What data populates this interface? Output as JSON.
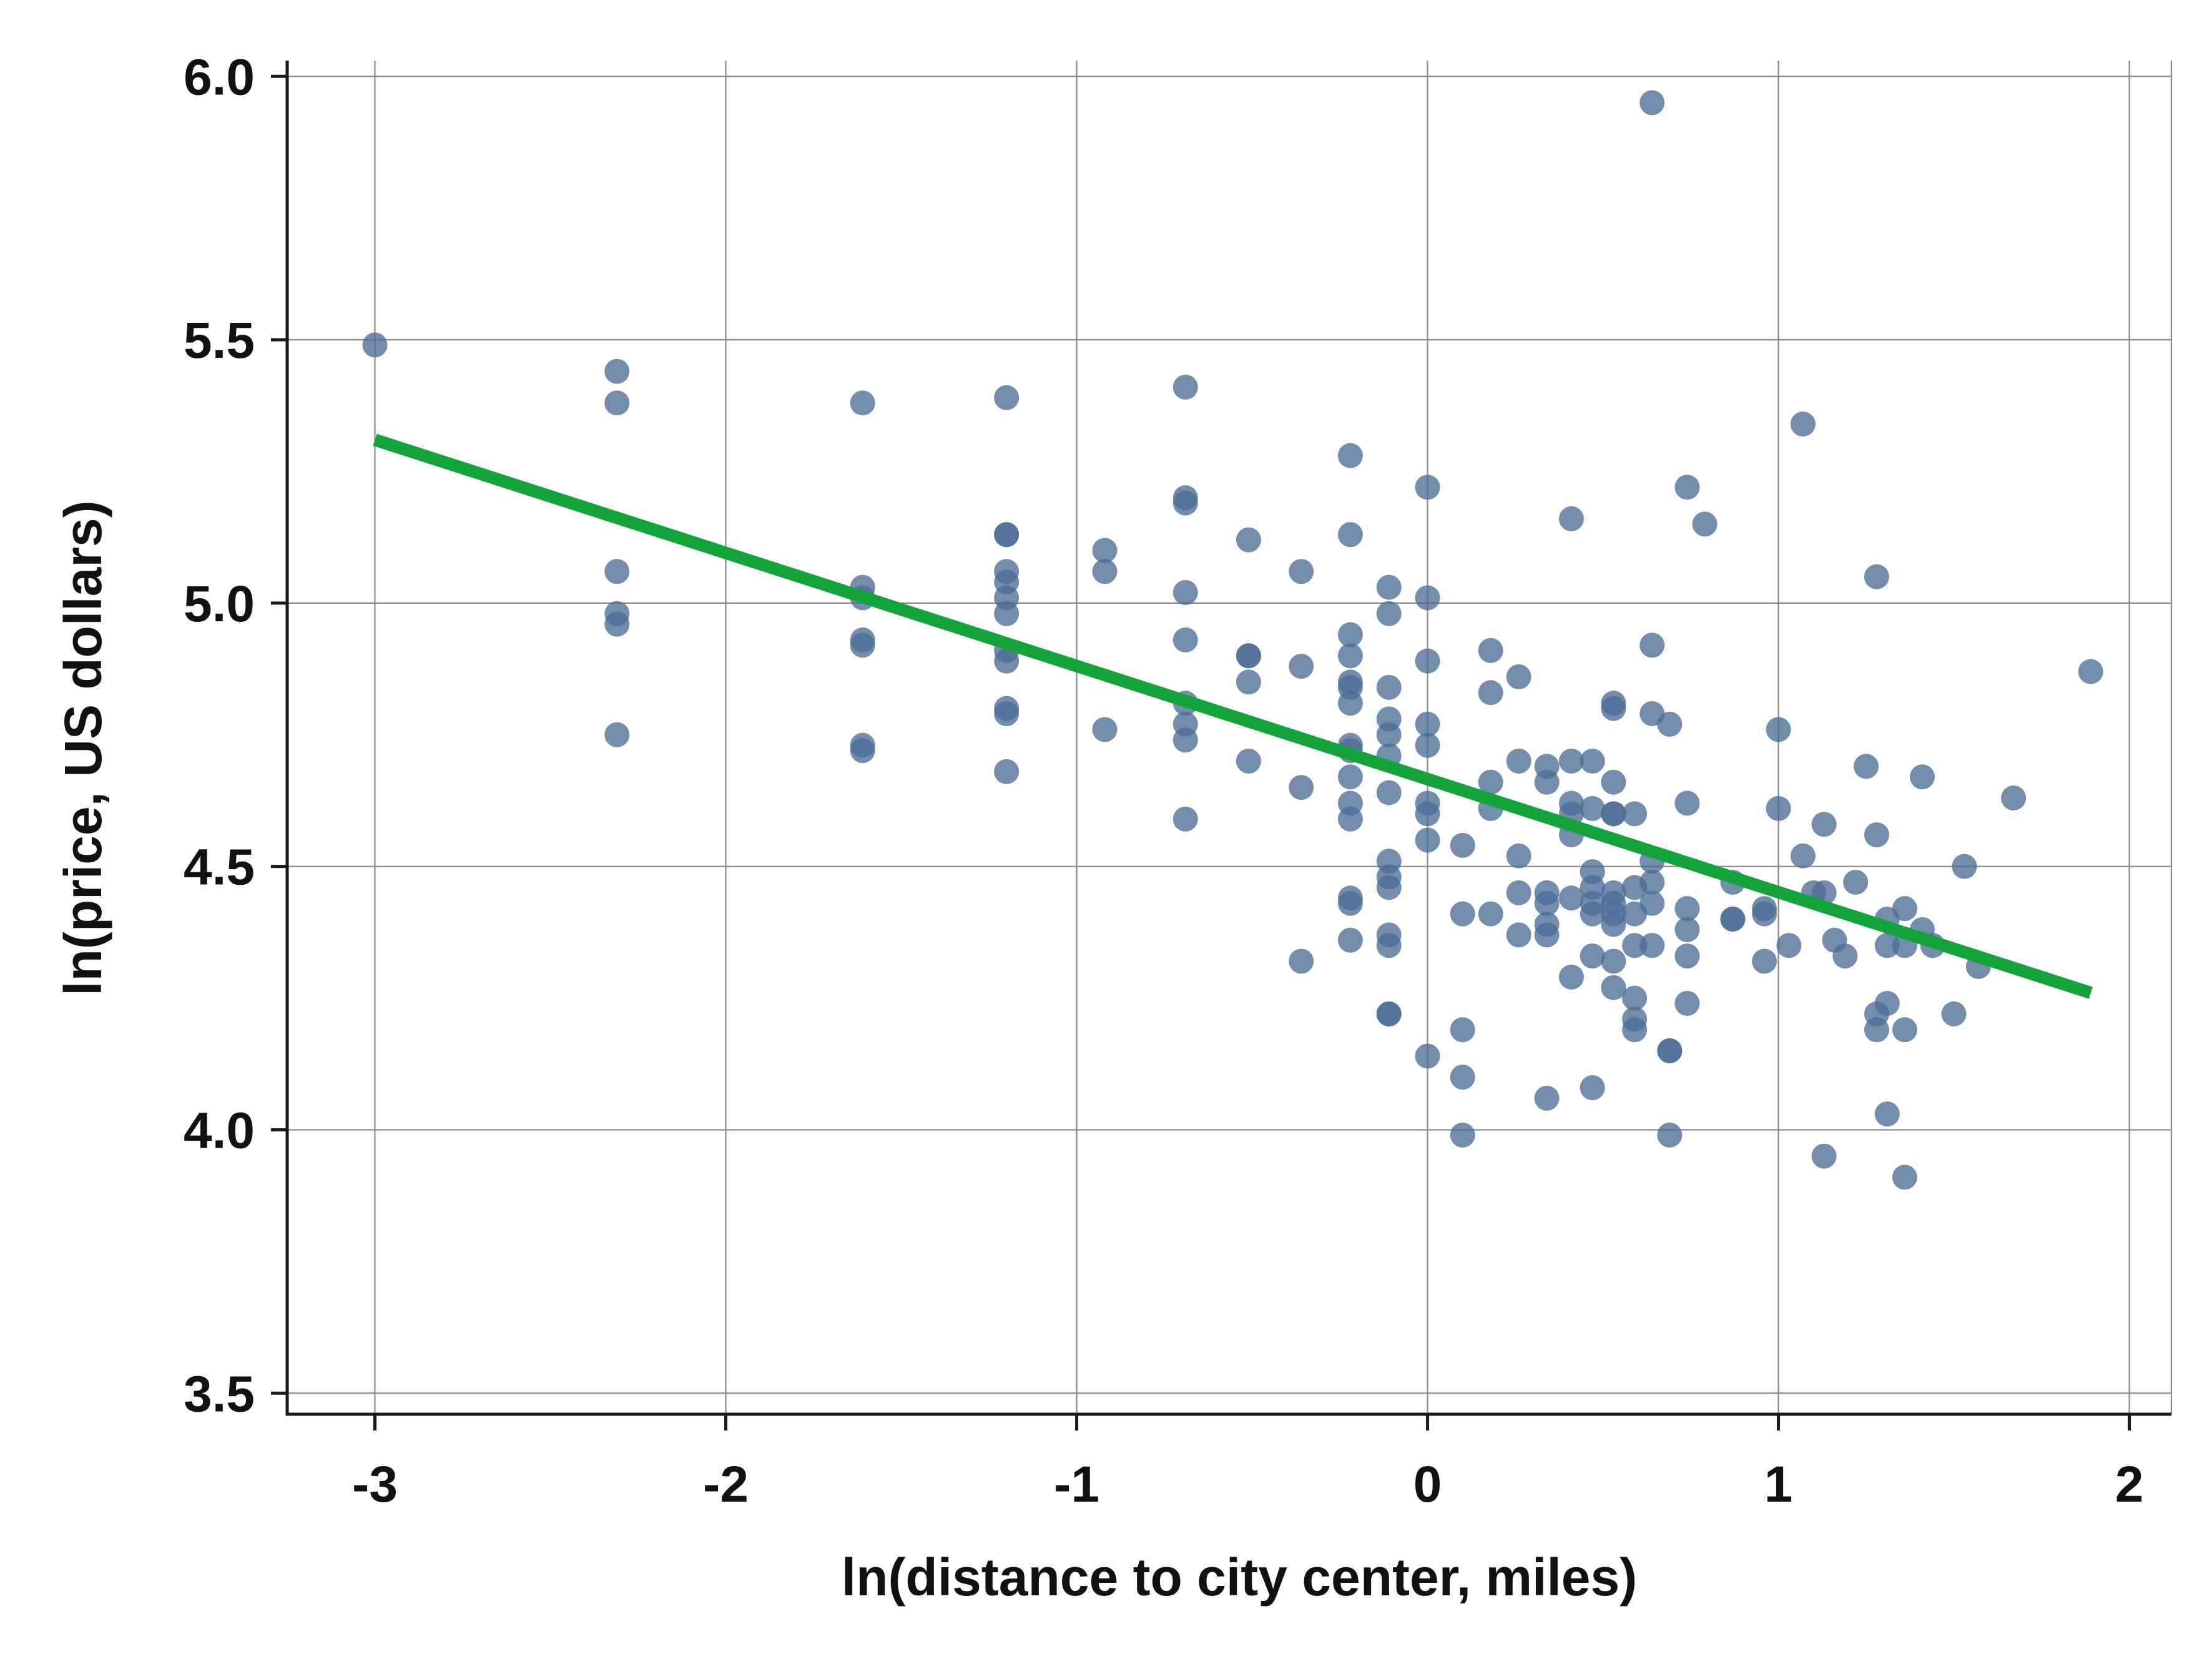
{
  "chart_data": {
    "type": "scatter",
    "title": "",
    "xlabel": "ln(distance to city center, miles)",
    "ylabel": "ln(price, US dollars)",
    "xlim": [
      -3.25,
      2.12
    ],
    "ylim": [
      3.46,
      6.03
    ],
    "x_ticks": [
      -3,
      -2,
      -1,
      0,
      1,
      2
    ],
    "x_tick_labels": [
      "-3",
      "-2",
      "-1",
      "0",
      "1",
      "2"
    ],
    "y_ticks": [
      3.5,
      4.0,
      4.5,
      5.0,
      5.5,
      6.0
    ],
    "y_tick_labels": [
      "3.5",
      "4.0",
      "4.5",
      "5.0",
      "5.5",
      "6.0"
    ],
    "grid": true,
    "legend": "none",
    "colors": {
      "points": "#4d6d96",
      "fit_line": "#14a33a"
    },
    "point_opacity": 0.78,
    "series": [
      {
        "values": [
          [
            -3.0,
            5.49
          ],
          [
            -2.31,
            5.44
          ],
          [
            -2.31,
            5.38
          ],
          [
            -2.31,
            5.06
          ],
          [
            -2.31,
            4.98
          ],
          [
            -2.31,
            4.96
          ],
          [
            -2.31,
            4.75
          ],
          [
            -1.61,
            5.38
          ],
          [
            -1.61,
            5.03
          ],
          [
            -1.61,
            5.01
          ],
          [
            -1.61,
            4.93
          ],
          [
            -1.61,
            4.92
          ],
          [
            -1.61,
            4.73
          ],
          [
            -1.61,
            4.72
          ],
          [
            -1.2,
            5.39
          ],
          [
            -1.2,
            5.13
          ],
          [
            -1.2,
            5.13
          ],
          [
            -1.2,
            5.06
          ],
          [
            -1.2,
            5.04
          ],
          [
            -1.2,
            5.01
          ],
          [
            -1.2,
            4.98
          ],
          [
            -1.2,
            4.91
          ],
          [
            -1.2,
            4.89
          ],
          [
            -1.2,
            4.8
          ],
          [
            -1.2,
            4.79
          ],
          [
            -1.2,
            4.68
          ],
          [
            -0.92,
            5.1
          ],
          [
            -0.92,
            5.06
          ],
          [
            -0.92,
            4.76
          ],
          [
            -0.69,
            5.41
          ],
          [
            -0.69,
            5.2
          ],
          [
            -0.69,
            5.19
          ],
          [
            -0.69,
            5.02
          ],
          [
            -0.69,
            4.93
          ],
          [
            -0.69,
            4.81
          ],
          [
            -0.69,
            4.77
          ],
          [
            -0.69,
            4.74
          ],
          [
            -0.69,
            4.59
          ],
          [
            -0.51,
            5.12
          ],
          [
            -0.51,
            4.9
          ],
          [
            -0.51,
            4.9
          ],
          [
            -0.51,
            4.85
          ],
          [
            -0.51,
            4.7
          ],
          [
            -0.36,
            5.06
          ],
          [
            -0.36,
            4.88
          ],
          [
            -0.36,
            4.65
          ],
          [
            -0.36,
            4.32
          ],
          [
            -0.22,
            5.28
          ],
          [
            -0.22,
            5.13
          ],
          [
            -0.22,
            4.94
          ],
          [
            -0.22,
            4.9
          ],
          [
            -0.22,
            4.85
          ],
          [
            -0.22,
            4.84
          ],
          [
            -0.22,
            4.81
          ],
          [
            -0.22,
            4.73
          ],
          [
            -0.22,
            4.72
          ],
          [
            -0.22,
            4.67
          ],
          [
            -0.22,
            4.62
          ],
          [
            -0.22,
            4.59
          ],
          [
            -0.22,
            4.44
          ],
          [
            -0.22,
            4.43
          ],
          [
            -0.22,
            4.36
          ],
          [
            -0.11,
            5.03
          ],
          [
            -0.11,
            4.98
          ],
          [
            -0.11,
            4.84
          ],
          [
            -0.11,
            4.78
          ],
          [
            -0.11,
            4.75
          ],
          [
            -0.11,
            4.71
          ],
          [
            -0.11,
            4.64
          ],
          [
            -0.11,
            4.51
          ],
          [
            -0.11,
            4.48
          ],
          [
            -0.11,
            4.46
          ],
          [
            -0.11,
            4.37
          ],
          [
            -0.11,
            4.35
          ],
          [
            -0.11,
            4.22
          ],
          [
            -0.11,
            4.22
          ],
          [
            0.0,
            5.22
          ],
          [
            0.0,
            5.01
          ],
          [
            0.0,
            4.89
          ],
          [
            0.0,
            4.77
          ],
          [
            0.0,
            4.73
          ],
          [
            0.0,
            4.62
          ],
          [
            0.0,
            4.6
          ],
          [
            0.0,
            4.55
          ],
          [
            0.0,
            4.14
          ],
          [
            0.1,
            4.54
          ],
          [
            0.1,
            4.41
          ],
          [
            0.1,
            4.19
          ],
          [
            0.1,
            4.1
          ],
          [
            0.1,
            3.99
          ],
          [
            0.18,
            4.91
          ],
          [
            0.18,
            4.83
          ],
          [
            0.18,
            4.66
          ],
          [
            0.18,
            4.61
          ],
          [
            0.18,
            4.41
          ],
          [
            0.26,
            4.86
          ],
          [
            0.26,
            4.7
          ],
          [
            0.26,
            4.52
          ],
          [
            0.26,
            4.45
          ],
          [
            0.26,
            4.37
          ],
          [
            0.34,
            4.69
          ],
          [
            0.34,
            4.66
          ],
          [
            0.34,
            4.45
          ],
          [
            0.34,
            4.43
          ],
          [
            0.34,
            4.39
          ],
          [
            0.34,
            4.37
          ],
          [
            0.34,
            4.06
          ],
          [
            0.41,
            5.16
          ],
          [
            0.41,
            4.7
          ],
          [
            0.41,
            4.62
          ],
          [
            0.41,
            4.6
          ],
          [
            0.41,
            4.56
          ],
          [
            0.41,
            4.44
          ],
          [
            0.41,
            4.29
          ],
          [
            0.47,
            4.7
          ],
          [
            0.47,
            4.61
          ],
          [
            0.47,
            4.49
          ],
          [
            0.47,
            4.46
          ],
          [
            0.47,
            4.43
          ],
          [
            0.47,
            4.41
          ],
          [
            0.47,
            4.33
          ],
          [
            0.47,
            4.08
          ],
          [
            0.53,
            4.81
          ],
          [
            0.53,
            4.8
          ],
          [
            0.53,
            4.66
          ],
          [
            0.53,
            4.6
          ],
          [
            0.53,
            4.6
          ],
          [
            0.53,
            4.45
          ],
          [
            0.53,
            4.43
          ],
          [
            0.53,
            4.41
          ],
          [
            0.53,
            4.39
          ],
          [
            0.53,
            4.32
          ],
          [
            0.53,
            4.27
          ],
          [
            0.59,
            4.6
          ],
          [
            0.59,
            4.46
          ],
          [
            0.59,
            4.41
          ],
          [
            0.59,
            4.35
          ],
          [
            0.59,
            4.25
          ],
          [
            0.59,
            4.21
          ],
          [
            0.59,
            4.19
          ],
          [
            0.64,
            5.95
          ],
          [
            0.64,
            4.92
          ],
          [
            0.64,
            4.79
          ],
          [
            0.64,
            4.51
          ],
          [
            0.64,
            4.47
          ],
          [
            0.64,
            4.43
          ],
          [
            0.64,
            4.35
          ],
          [
            0.69,
            4.77
          ],
          [
            0.69,
            4.15
          ],
          [
            0.69,
            4.15
          ],
          [
            0.69,
            3.99
          ],
          [
            0.74,
            5.22
          ],
          [
            0.74,
            4.62
          ],
          [
            0.74,
            4.42
          ],
          [
            0.74,
            4.38
          ],
          [
            0.74,
            4.33
          ],
          [
            0.74,
            4.24
          ],
          [
            0.79,
            5.15
          ],
          [
            0.87,
            4.47
          ],
          [
            0.87,
            4.4
          ],
          [
            0.87,
            4.4
          ],
          [
            0.96,
            4.42
          ],
          [
            0.96,
            4.41
          ],
          [
            0.96,
            4.32
          ],
          [
            1.0,
            4.76
          ],
          [
            1.0,
            4.61
          ],
          [
            1.03,
            4.35
          ],
          [
            1.07,
            5.34
          ],
          [
            1.07,
            4.52
          ],
          [
            1.1,
            4.45
          ],
          [
            1.13,
            4.58
          ],
          [
            1.13,
            4.45
          ],
          [
            1.13,
            3.95
          ],
          [
            1.16,
            4.36
          ],
          [
            1.19,
            4.33
          ],
          [
            1.22,
            4.47
          ],
          [
            1.25,
            4.69
          ],
          [
            1.28,
            5.05
          ],
          [
            1.28,
            4.56
          ],
          [
            1.28,
            4.22
          ],
          [
            1.28,
            4.19
          ],
          [
            1.31,
            4.4
          ],
          [
            1.31,
            4.35
          ],
          [
            1.31,
            4.24
          ],
          [
            1.31,
            4.03
          ],
          [
            1.36,
            4.42
          ],
          [
            1.36,
            4.35
          ],
          [
            1.36,
            4.19
          ],
          [
            1.36,
            3.91
          ],
          [
            1.41,
            4.67
          ],
          [
            1.41,
            4.38
          ],
          [
            1.44,
            4.35
          ],
          [
            1.5,
            4.22
          ],
          [
            1.53,
            4.5
          ],
          [
            1.57,
            4.31
          ],
          [
            1.67,
            4.63
          ],
          [
            1.89,
            4.87
          ]
        ]
      }
    ],
    "fit_line": {
      "x": [
        -3.0,
        1.89
      ],
      "y": [
        5.31,
        4.26
      ]
    }
  }
}
